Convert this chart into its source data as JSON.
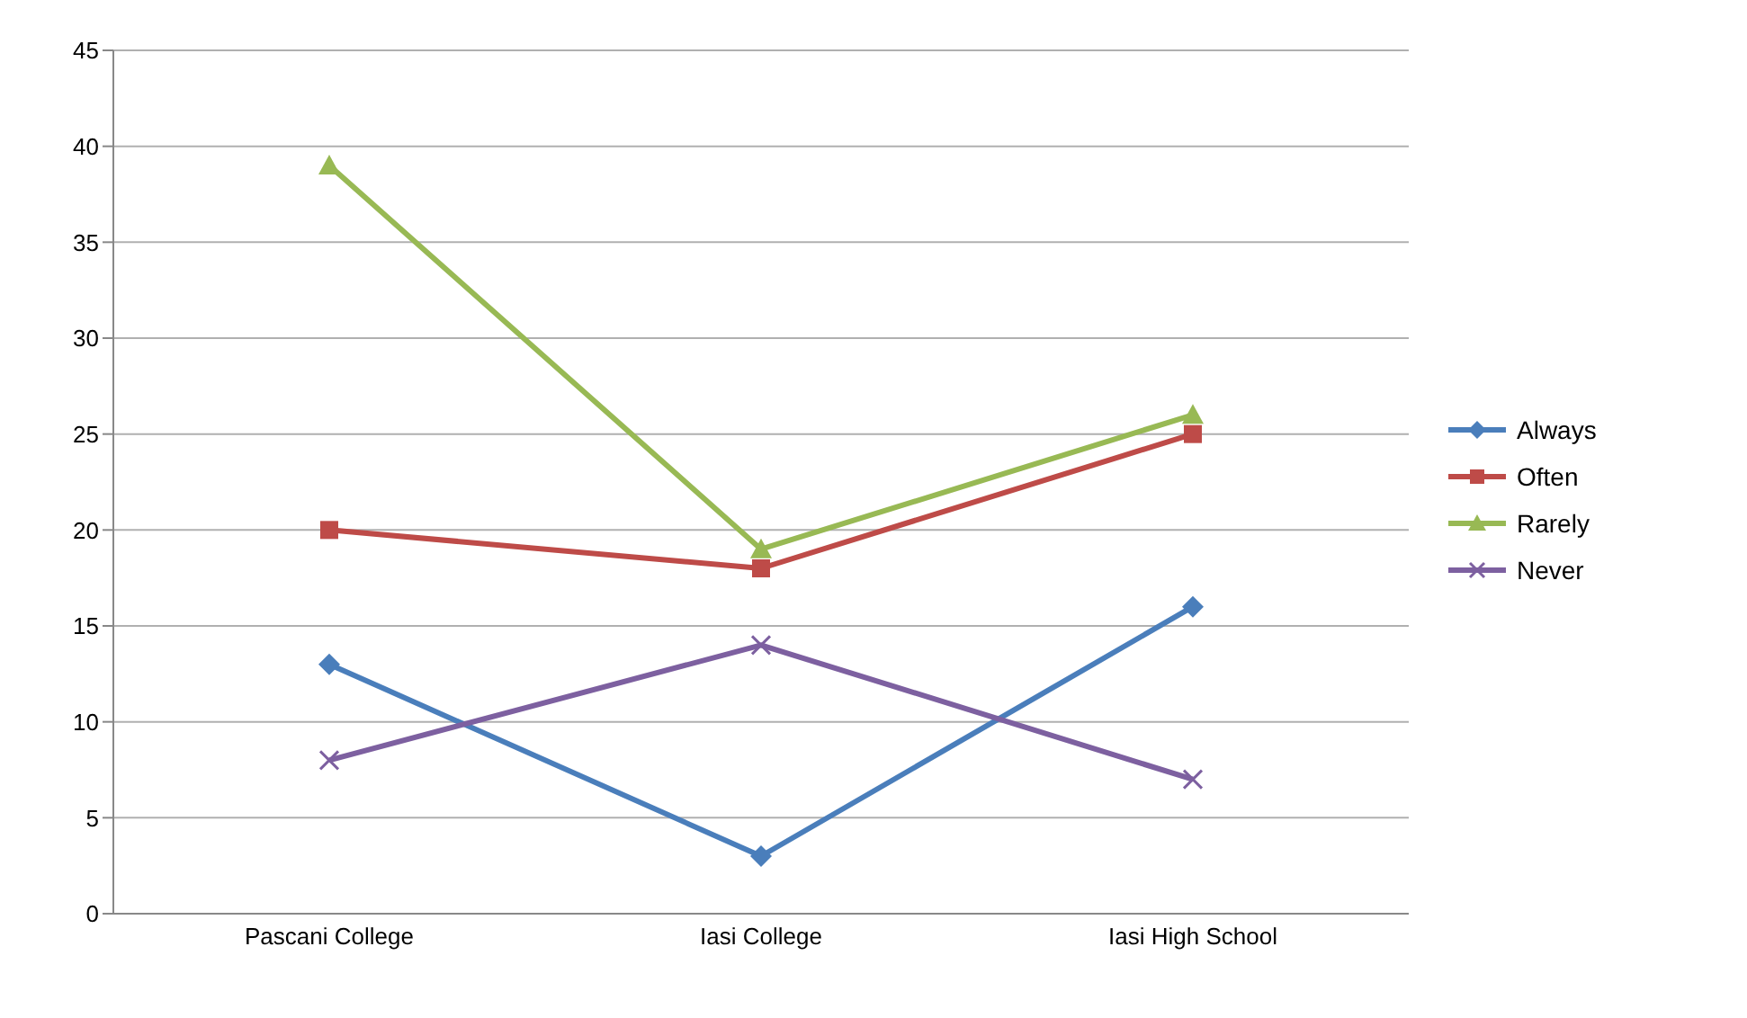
{
  "chart_data": {
    "type": "line",
    "categories": [
      "Pascani College",
      "Iasi College",
      "Iasi High School"
    ],
    "series": [
      {
        "name": "Always",
        "color": "#4a7ebb",
        "marker": "diamond",
        "values": [
          13,
          3,
          16
        ]
      },
      {
        "name": "Often",
        "color": "#be4b48",
        "marker": "square",
        "values": [
          20,
          18,
          25
        ]
      },
      {
        "name": "Rarely",
        "color": "#98b954",
        "marker": "triangle",
        "values": [
          39,
          19,
          26
        ]
      },
      {
        "name": "Never",
        "color": "#7d60a0",
        "marker": "cross",
        "values": [
          8,
          14,
          7
        ]
      }
    ],
    "ylim": [
      0,
      45
    ],
    "yticks": [
      0,
      5,
      10,
      15,
      20,
      25,
      30,
      35,
      40,
      45
    ],
    "grid": "y",
    "legend": "right"
  }
}
